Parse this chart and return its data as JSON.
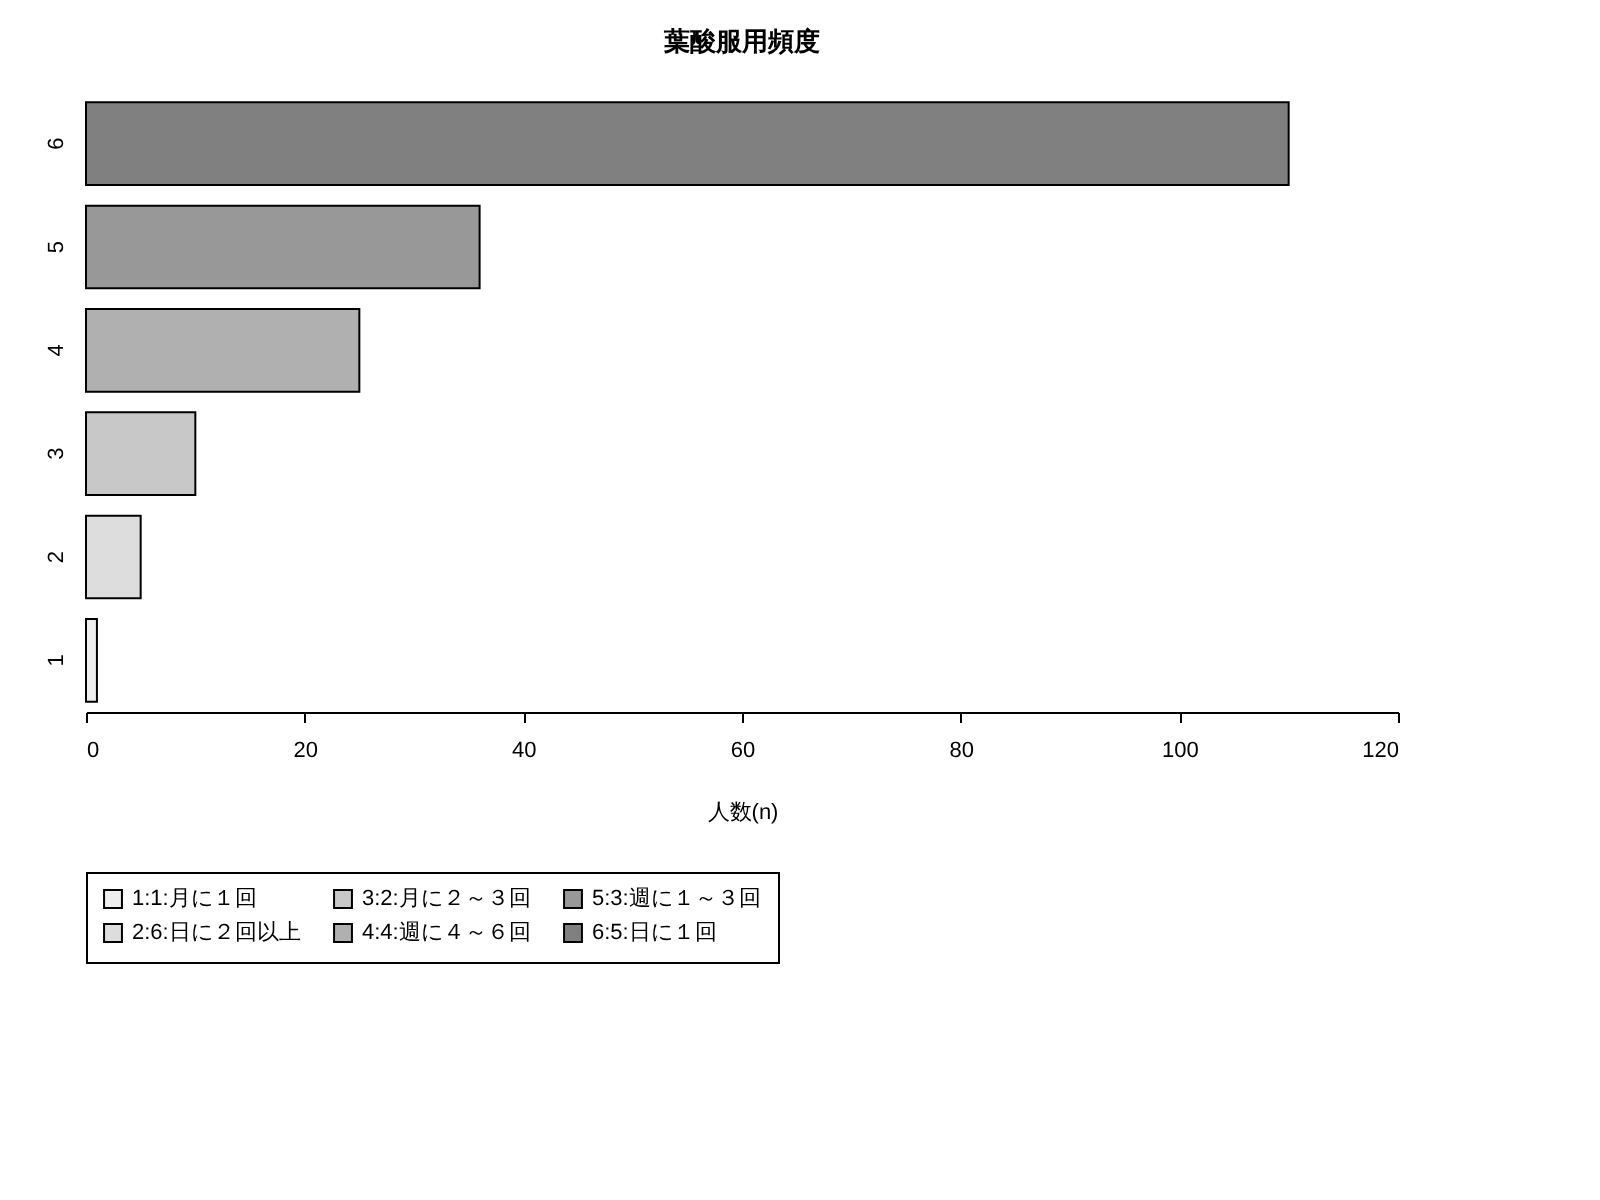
{
  "chart_data": {
    "type": "bar",
    "orientation": "horizontal",
    "title": "葉酸服用頻度",
    "xlabel": "人数(n)",
    "categories": [
      "6",
      "5",
      "4",
      "3",
      "2",
      "1"
    ],
    "series": [
      {
        "name": "1:1:月に１回",
        "color": "#eeeeee",
        "values": [
          null,
          null,
          null,
          null,
          null,
          1
        ]
      },
      {
        "name": "2:6:日に２回以上",
        "color": "#dddddd",
        "values": [
          null,
          null,
          null,
          null,
          5,
          null
        ]
      },
      {
        "name": "3:2:月に２～３回",
        "color": "#c8c8c8",
        "values": [
          null,
          null,
          null,
          10,
          null,
          null
        ]
      },
      {
        "name": "4:4:週に４～６回",
        "color": "#b0b0b0",
        "values": [
          null,
          null,
          25,
          null,
          null,
          null
        ]
      },
      {
        "name": "5:3:週に１～３回",
        "color": "#989898",
        "values": [
          null,
          36,
          null,
          null,
          null,
          null
        ]
      },
      {
        "name": "6:5:日に１回",
        "color": "#808080",
        "values": [
          110,
          null,
          null,
          null,
          null,
          null
        ]
      }
    ],
    "xlim": [
      0,
      120
    ],
    "xticks": [
      0,
      20,
      40,
      60,
      80,
      100,
      120
    ],
    "grid": false,
    "legend": "bottom left"
  }
}
